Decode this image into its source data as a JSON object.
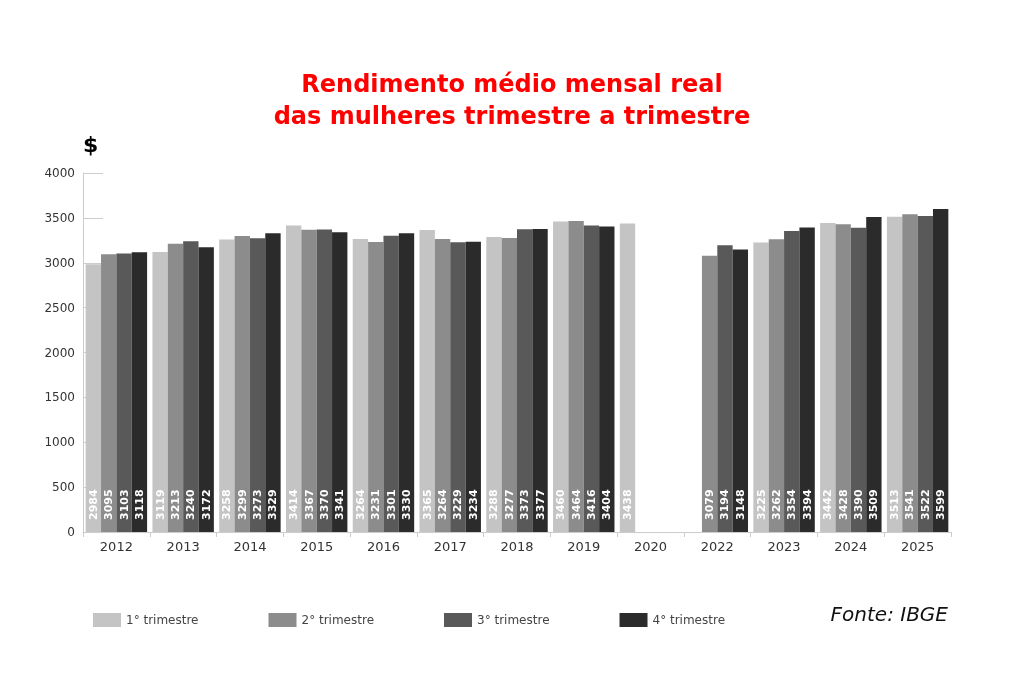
{
  "chart_data": {
    "type": "bar",
    "title": "Rendimento médio mensal real\ndas mulheres trimestre a trimestre",
    "ylabel": "$",
    "categories": [
      "2012",
      "2013",
      "2014",
      "2015",
      "2016",
      "2017",
      "2018",
      "2019",
      "2020",
      "2022",
      "2023",
      "2024",
      "2025"
    ],
    "series": [
      {
        "name": "1° trimestre",
        "color": "#c4c4c4",
        "values": [
          2984,
          3119,
          3258,
          3414,
          3264,
          3365,
          3288,
          3460,
          3438,
          null,
          3225,
          3442,
          3513
        ]
      },
      {
        "name": "2° trimestre",
        "color": "#8c8c8c",
        "values": [
          3095,
          3213,
          3299,
          3367,
          3231,
          3264,
          3277,
          3464,
          null,
          3079,
          3262,
          3428,
          3541
        ]
      },
      {
        "name": "3° trimestre",
        "color": "#595959",
        "values": [
          3103,
          3240,
          3273,
          3370,
          3301,
          3229,
          3373,
          3416,
          null,
          3194,
          3354,
          3390,
          3522
        ]
      },
      {
        "name": "4° trimestre",
        "color": "#2b2b2b",
        "values": [
          3118,
          3172,
          3329,
          3341,
          3330,
          3234,
          3377,
          3404,
          null,
          3148,
          3394,
          3509,
          3599
        ]
      }
    ],
    "ylim": [
      0,
      4000
    ],
    "yticks": [
      0,
      500,
      1000,
      1500,
      2000,
      2500,
      3000,
      3500,
      4000
    ],
    "grid": false,
    "legend": "bottom",
    "data_labels": true,
    "annotations": [
      "Fonte: IBGE"
    ]
  }
}
